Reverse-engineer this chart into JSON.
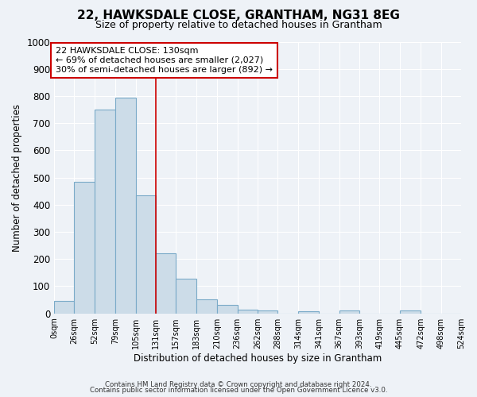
{
  "title": "22, HAWKSDALE CLOSE, GRANTHAM, NG31 8EG",
  "subtitle": "Size of property relative to detached houses in Grantham",
  "xlabel": "Distribution of detached houses by size in Grantham",
  "ylabel": "Number of detached properties",
  "bin_labels": [
    "0sqm",
    "26sqm",
    "52sqm",
    "79sqm",
    "105sqm",
    "131sqm",
    "157sqm",
    "183sqm",
    "210sqm",
    "236sqm",
    "262sqm",
    "288sqm",
    "314sqm",
    "341sqm",
    "367sqm",
    "393sqm",
    "419sqm",
    "445sqm",
    "472sqm",
    "498sqm",
    "524sqm"
  ],
  "bin_edges": [
    0,
    26,
    52,
    79,
    105,
    131,
    157,
    183,
    210,
    236,
    262,
    288,
    314,
    341,
    367,
    393,
    419,
    445,
    472,
    498,
    524
  ],
  "bar_heights": [
    45,
    485,
    750,
    795,
    435,
    220,
    128,
    52,
    30,
    15,
    10,
    0,
    8,
    0,
    10,
    0,
    0,
    10,
    0,
    0
  ],
  "bar_color": "#ccdce8",
  "bar_edge_color": "#7aaac8",
  "vline_x": 131,
  "vline_color": "#cc0000",
  "ylim": [
    0,
    1000
  ],
  "yticks": [
    0,
    100,
    200,
    300,
    400,
    500,
    600,
    700,
    800,
    900,
    1000
  ],
  "annotation_title": "22 HAWKSDALE CLOSE: 130sqm",
  "annotation_line1": "← 69% of detached houses are smaller (2,027)",
  "annotation_line2": "30% of semi-detached houses are larger (892) →",
  "annotation_box_color": "#ffffff",
  "annotation_box_edge": "#cc0000",
  "bg_color": "#eef2f7",
  "grid_color": "#ffffff",
  "footer1": "Contains HM Land Registry data © Crown copyright and database right 2024.",
  "footer2": "Contains public sector information licensed under the Open Government Licence v3.0."
}
